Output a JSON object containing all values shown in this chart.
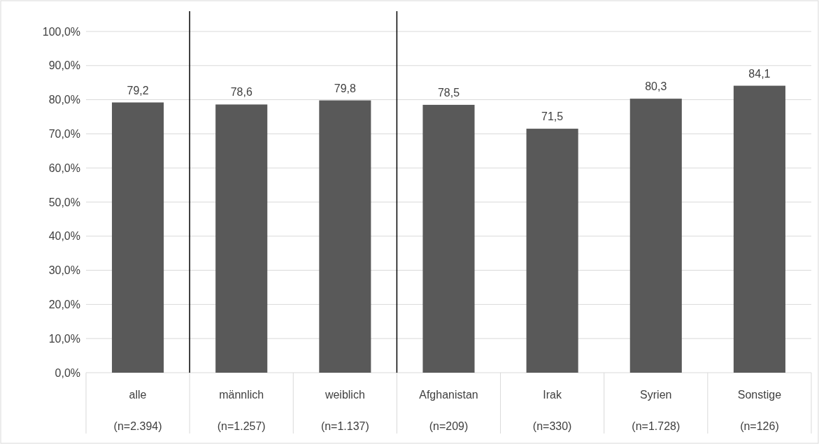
{
  "chart_data": {
    "type": "bar",
    "categories": [
      "alle\n(n=2.394)",
      "männlich\n(n=1.257)",
      "weiblich\n(n=1.137)",
      "Afghanistan\n(n=209)",
      "Irak\n(n=330)",
      "Syrien\n(n=1.728)",
      "Sonstige\n(n=126)"
    ],
    "values": [
      79.2,
      78.6,
      79.8,
      78.5,
      71.5,
      80.3,
      84.1
    ],
    "value_labels": [
      "79,2",
      "78,6",
      "79,8",
      "78,5",
      "71,5",
      "80,3",
      "84,1"
    ],
    "color": "#595959",
    "ylim": [
      0,
      100
    ],
    "yticks": [
      {
        "value": 0,
        "label": "0,0%"
      },
      {
        "value": 10,
        "label": "10,0%"
      },
      {
        "value": 20,
        "label": "20,0%"
      },
      {
        "value": 30,
        "label": "30,0%"
      },
      {
        "value": 40,
        "label": "40,0%"
      },
      {
        "value": 50,
        "label": "50,0%"
      },
      {
        "value": 60,
        "label": "60,0%"
      },
      {
        "value": 70,
        "label": "70,0%"
      },
      {
        "value": 80,
        "label": "80,0%"
      },
      {
        "value": 90,
        "label": "90,0%"
      },
      {
        "value": 100,
        "label": "100,0%"
      }
    ],
    "grid": "y"
  }
}
